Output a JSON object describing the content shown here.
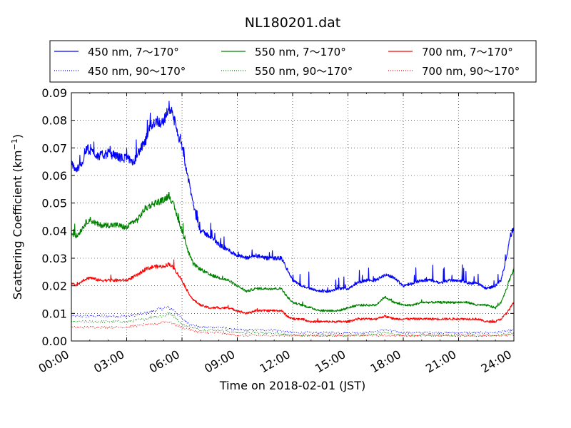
{
  "chart_data": {
    "type": "line",
    "title": "NL180201.dat",
    "xlabel": "Time on 2018-02-01 (JST)",
    "ylabel": "Scattering Coefficient (km",
    "ylabel_sup": "−1",
    "ylabel_close": ")",
    "xlim": [
      0,
      24
    ],
    "ylim": [
      0,
      0.09
    ],
    "x_ticks": [
      0,
      3,
      6,
      9,
      12,
      15,
      18,
      21,
      24
    ],
    "x_tick_labels": [
      "00:00",
      "03:00",
      "06:00",
      "09:00",
      "12:00",
      "15:00",
      "18:00",
      "21:00",
      "24:00"
    ],
    "y_ticks": [
      0,
      0.01,
      0.02,
      0.03,
      0.04,
      0.05,
      0.06,
      0.07,
      0.08,
      0.09
    ],
    "y_tick_labels": [
      "0.00",
      "0.01",
      "0.02",
      "0.03",
      "0.04",
      "0.05",
      "0.06",
      "0.07",
      "0.08",
      "0.09"
    ],
    "grid": true,
    "legend_position": "top, above plot, 3 columns",
    "series": [
      {
        "name": "450 nm, 7～170°",
        "color": "#0000ff",
        "style": "solid",
        "x": [
          0,
          0.3,
          0.6,
          0.8,
          1.0,
          1.5,
          2.0,
          2.5,
          2.8,
          3.0,
          3.3,
          3.6,
          3.8,
          4.0,
          4.3,
          4.6,
          4.9,
          5.1,
          5.3,
          5.5,
          5.7,
          6.0,
          6.3,
          6.6,
          6.8,
          7.0,
          7.5,
          8.0,
          8.5,
          9.0,
          9.5,
          10.0,
          10.5,
          11.0,
          11.4,
          11.7,
          12.0,
          12.5,
          13.0,
          13.5,
          14.0,
          14.5,
          15.0,
          15.5,
          16.0,
          16.5,
          17.0,
          17.5,
          18.0,
          18.5,
          19.0,
          19.5,
          20.0,
          20.5,
          21.0,
          21.5,
          22.0,
          22.5,
          23.0,
          23.3,
          23.6,
          23.8,
          24.0
        ],
        "y": [
          0.064,
          0.062,
          0.065,
          0.07,
          0.069,
          0.067,
          0.068,
          0.067,
          0.066,
          0.067,
          0.064,
          0.068,
          0.07,
          0.072,
          0.078,
          0.08,
          0.079,
          0.081,
          0.085,
          0.082,
          0.077,
          0.07,
          0.06,
          0.05,
          0.044,
          0.04,
          0.038,
          0.035,
          0.033,
          0.031,
          0.03,
          0.031,
          0.03,
          0.03,
          0.03,
          0.026,
          0.022,
          0.02,
          0.019,
          0.018,
          0.018,
          0.019,
          0.019,
          0.021,
          0.022,
          0.022,
          0.024,
          0.023,
          0.02,
          0.021,
          0.022,
          0.022,
          0.021,
          0.022,
          0.022,
          0.021,
          0.021,
          0.019,
          0.02,
          0.022,
          0.03,
          0.038,
          0.041
        ]
      },
      {
        "name": "550 nm, 7～170°",
        "color": "#008000",
        "style": "solid",
        "x": [
          0,
          0.3,
          0.6,
          0.8,
          1.0,
          1.5,
          2.0,
          2.5,
          3.0,
          3.3,
          3.6,
          4.0,
          4.5,
          5.0,
          5.3,
          5.6,
          6.0,
          6.3,
          6.6,
          7.0,
          7.5,
          8.0,
          8.5,
          9.0,
          9.5,
          10.0,
          10.5,
          11.0,
          11.4,
          11.7,
          12.0,
          12.5,
          13.0,
          13.5,
          14.0,
          14.5,
          15.0,
          15.5,
          16.0,
          16.5,
          17.0,
          17.5,
          18.0,
          18.5,
          19.0,
          19.5,
          20.0,
          20.5,
          21.0,
          21.5,
          22.0,
          22.5,
          23.0,
          23.3,
          23.6,
          23.8,
          24.0
        ],
        "y": [
          0.039,
          0.038,
          0.041,
          0.043,
          0.044,
          0.042,
          0.042,
          0.042,
          0.041,
          0.043,
          0.044,
          0.048,
          0.05,
          0.051,
          0.053,
          0.048,
          0.04,
          0.033,
          0.028,
          0.026,
          0.024,
          0.023,
          0.022,
          0.02,
          0.018,
          0.019,
          0.019,
          0.019,
          0.019,
          0.016,
          0.014,
          0.013,
          0.012,
          0.011,
          0.011,
          0.011,
          0.012,
          0.013,
          0.013,
          0.013,
          0.016,
          0.014,
          0.013,
          0.013,
          0.014,
          0.014,
          0.014,
          0.014,
          0.014,
          0.014,
          0.013,
          0.013,
          0.012,
          0.014,
          0.019,
          0.023,
          0.026
        ]
      },
      {
        "name": "700 nm, 7～170°",
        "color": "#ff0000",
        "style": "solid",
        "x": [
          0,
          0.3,
          0.6,
          1.0,
          1.5,
          2.0,
          2.5,
          3.0,
          3.3,
          3.6,
          4.0,
          4.5,
          5.0,
          5.3,
          5.6,
          6.0,
          6.3,
          6.6,
          7.0,
          7.5,
          8.0,
          8.5,
          9.0,
          9.5,
          10.0,
          10.5,
          11.0,
          11.4,
          11.7,
          12.0,
          12.5,
          13.0,
          13.5,
          14.0,
          14.5,
          15.0,
          15.5,
          16.0,
          16.5,
          17.0,
          17.5,
          18.0,
          18.5,
          19.0,
          19.5,
          20.0,
          20.5,
          21.0,
          21.5,
          22.0,
          22.5,
          23.0,
          23.3,
          23.6,
          23.8,
          24.0
        ],
        "y": [
          0.021,
          0.02,
          0.022,
          0.023,
          0.022,
          0.022,
          0.022,
          0.022,
          0.023,
          0.024,
          0.026,
          0.027,
          0.027,
          0.028,
          0.026,
          0.022,
          0.018,
          0.015,
          0.013,
          0.012,
          0.012,
          0.012,
          0.011,
          0.01,
          0.011,
          0.011,
          0.011,
          0.011,
          0.009,
          0.008,
          0.008,
          0.007,
          0.007,
          0.007,
          0.007,
          0.007,
          0.008,
          0.008,
          0.008,
          0.009,
          0.008,
          0.008,
          0.008,
          0.008,
          0.008,
          0.008,
          0.008,
          0.008,
          0.008,
          0.008,
          0.007,
          0.007,
          0.008,
          0.01,
          0.012,
          0.014
        ]
      },
      {
        "name": "450 nm, 90～170°",
        "color": "#0000ff",
        "style": "dotted",
        "x": [
          0,
          1,
          2,
          3,
          4,
          4.5,
          5,
          5.3,
          5.6,
          6,
          6.5,
          7,
          8,
          9,
          10,
          11,
          12,
          13,
          14,
          15,
          16,
          17,
          18,
          19,
          20,
          21,
          22,
          23,
          24
        ],
        "y": [
          0.009,
          0.009,
          0.009,
          0.009,
          0.01,
          0.011,
          0.012,
          0.012,
          0.011,
          0.008,
          0.006,
          0.005,
          0.005,
          0.004,
          0.004,
          0.004,
          0.003,
          0.003,
          0.003,
          0.003,
          0.003,
          0.004,
          0.003,
          0.003,
          0.003,
          0.003,
          0.003,
          0.003,
          0.004
        ]
      },
      {
        "name": "550 nm, 90～170°",
        "color": "#008000",
        "style": "dotted",
        "x": [
          0,
          1,
          2,
          3,
          4,
          4.5,
          5,
          5.3,
          5.6,
          6,
          6.5,
          7,
          8,
          9,
          10,
          11,
          12,
          13,
          14,
          15,
          16,
          17,
          18,
          19,
          20,
          21,
          22,
          23,
          24
        ],
        "y": [
          0.007,
          0.007,
          0.007,
          0.007,
          0.008,
          0.009,
          0.009,
          0.01,
          0.009,
          0.006,
          0.005,
          0.004,
          0.004,
          0.003,
          0.003,
          0.003,
          0.002,
          0.002,
          0.002,
          0.002,
          0.002,
          0.003,
          0.002,
          0.002,
          0.002,
          0.002,
          0.002,
          0.002,
          0.003
        ]
      },
      {
        "name": "700 nm, 90～170°",
        "color": "#ff0000",
        "style": "dotted",
        "x": [
          0,
          1,
          2,
          3,
          4,
          4.5,
          5,
          5.3,
          5.6,
          6,
          6.5,
          7,
          8,
          9,
          10,
          11,
          12,
          13,
          14,
          15,
          16,
          17,
          18,
          19,
          20,
          21,
          22,
          23,
          24
        ],
        "y": [
          0.005,
          0.005,
          0.005,
          0.005,
          0.006,
          0.006,
          0.007,
          0.007,
          0.006,
          0.005,
          0.004,
          0.003,
          0.003,
          0.002,
          0.002,
          0.002,
          0.002,
          0.002,
          0.002,
          0.002,
          0.002,
          0.002,
          0.002,
          0.002,
          0.002,
          0.002,
          0.002,
          0.002,
          0.002
        ]
      }
    ]
  }
}
